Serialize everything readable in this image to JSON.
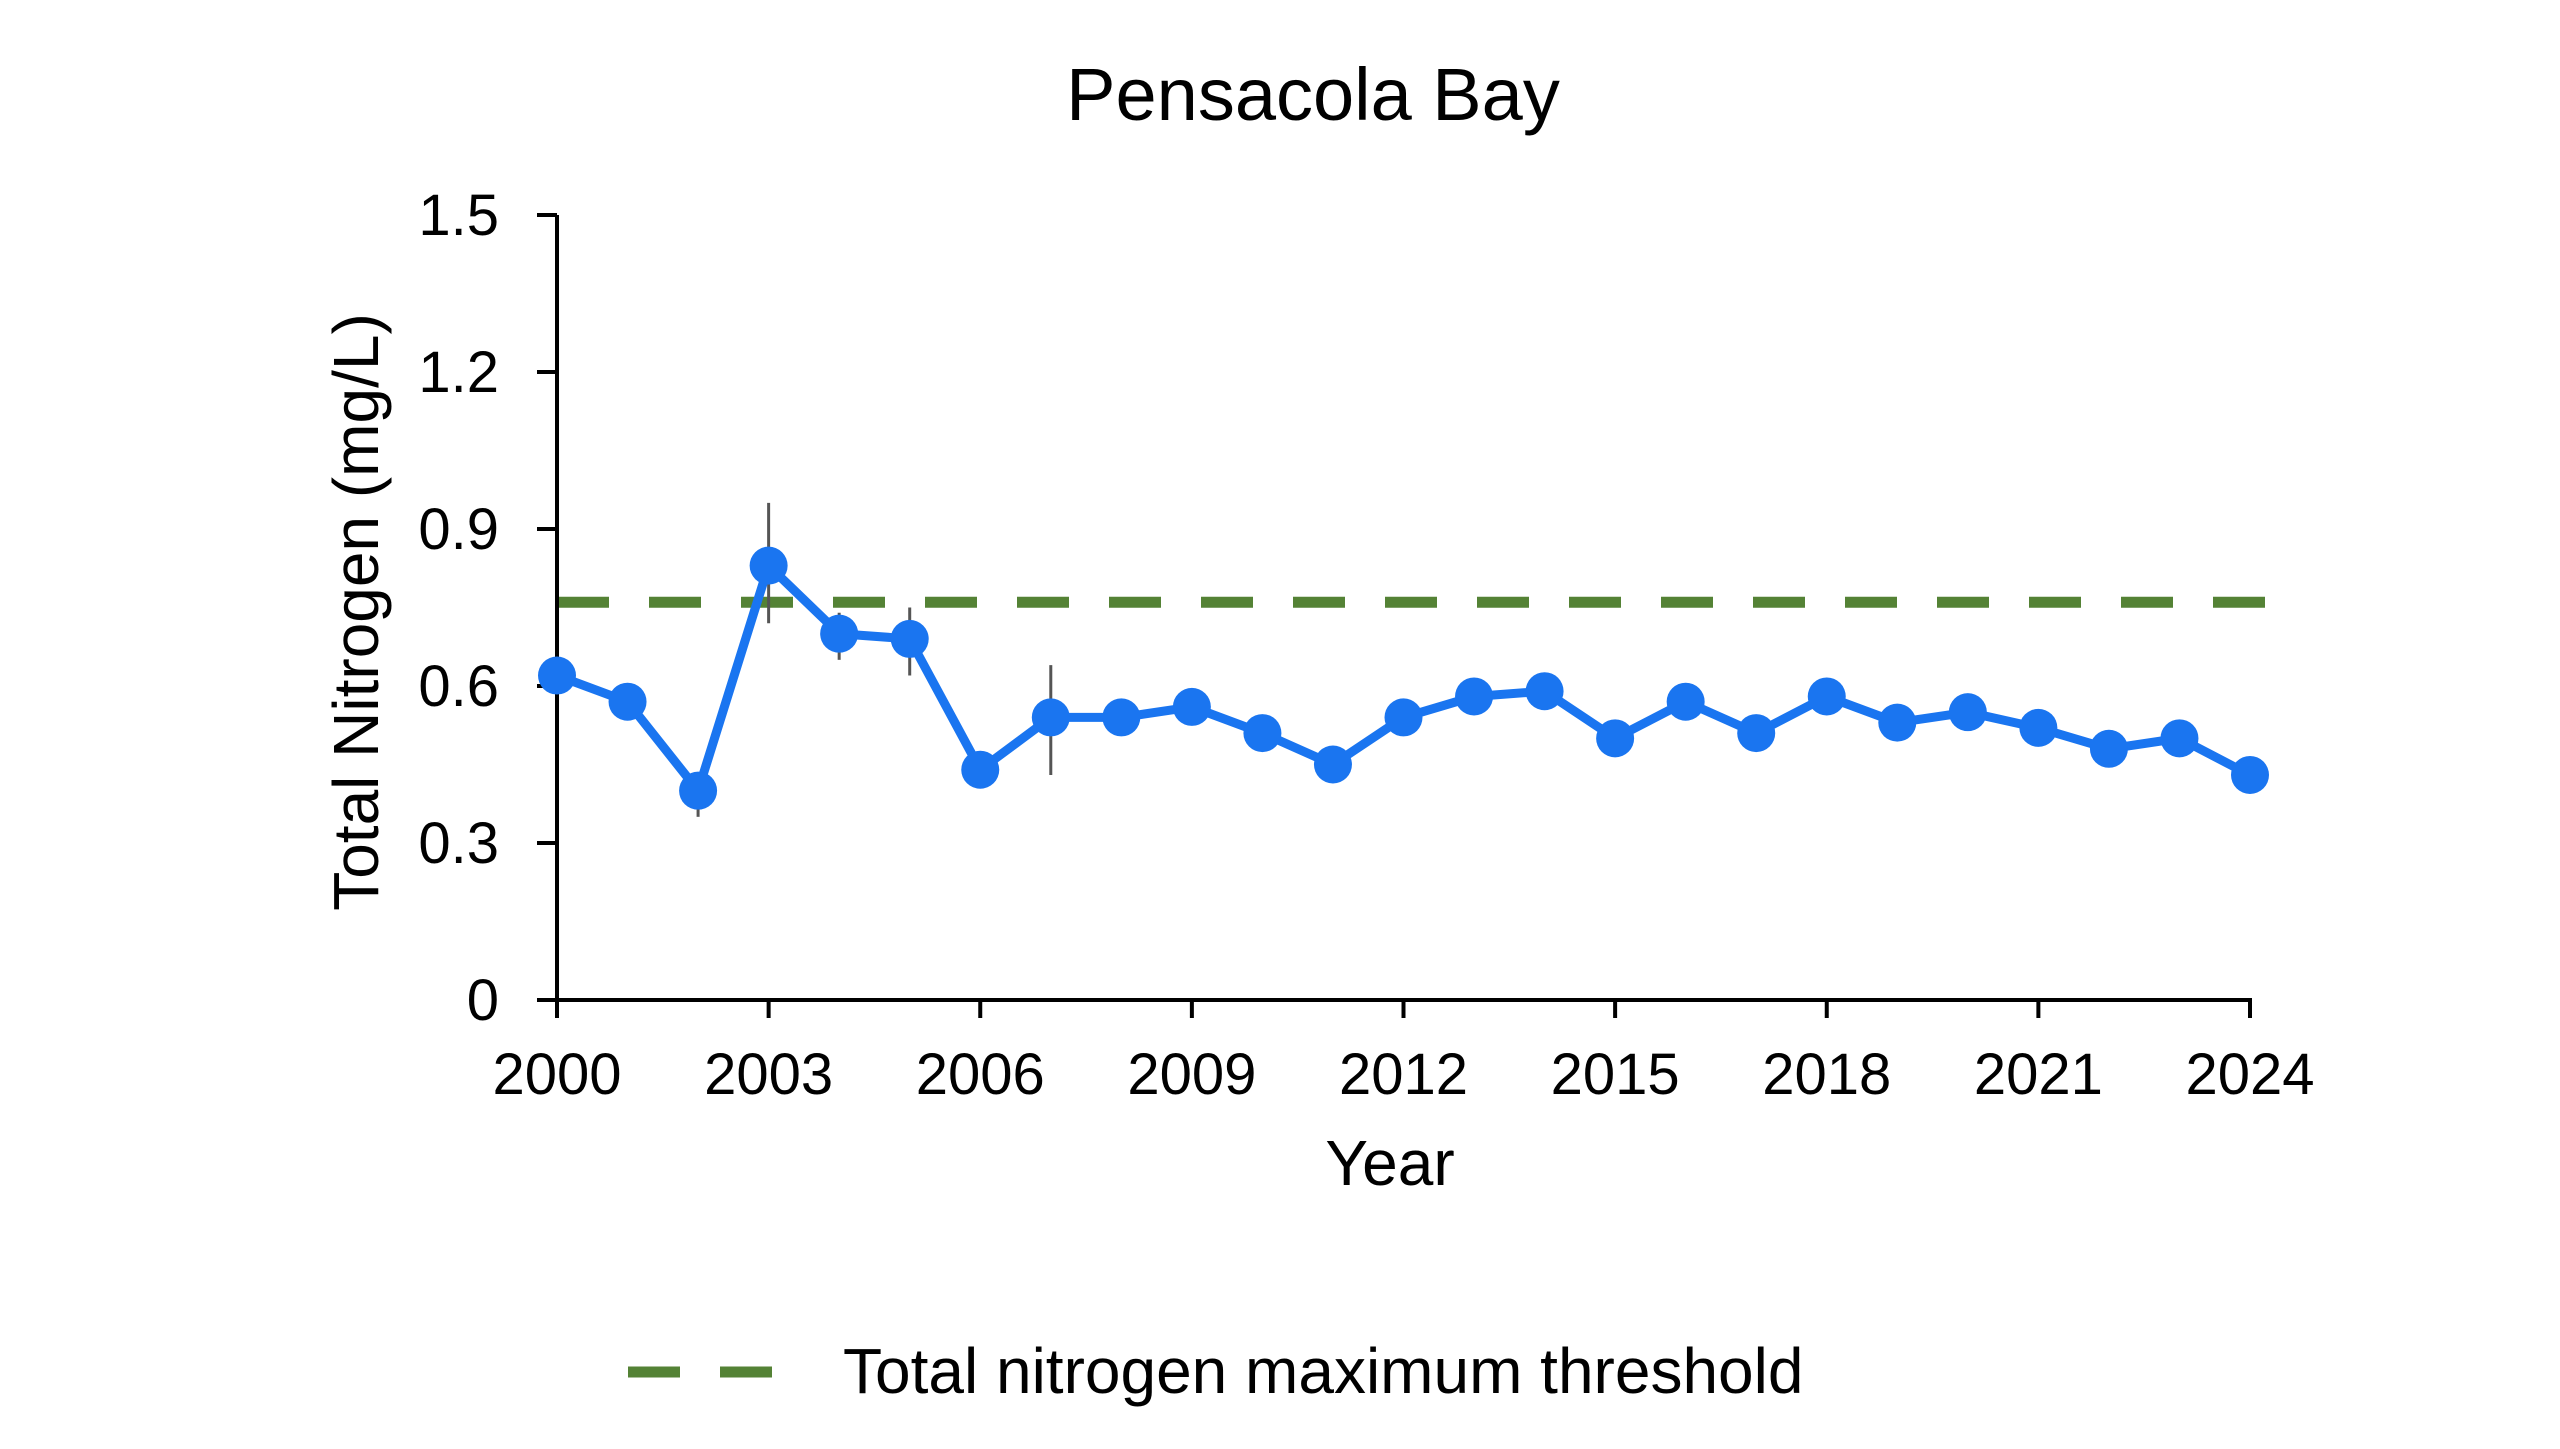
{
  "chart_data": {
    "type": "line",
    "title": "Pensacola Bay",
    "xlabel": "Year",
    "ylabel": "Total Nitrogen (mg/L)",
    "xlim": [
      2000,
      2024
    ],
    "ylim": [
      0,
      1.5
    ],
    "x_ticks": [
      "2000",
      "2003",
      "2006",
      "2009",
      "2012",
      "2015",
      "2018",
      "2021",
      "2024"
    ],
    "y_ticks": [
      "0",
      "0.3",
      "0.6",
      "0.9",
      "1.2",
      "1.5"
    ],
    "grid": false,
    "legend_position": "bottom",
    "series": [
      {
        "color": "#1a75f0",
        "points": [
          {
            "x": 2000,
            "y": 0.62
          },
          {
            "x": 2001,
            "y": 0.57
          },
          {
            "x": 2002,
            "y": 0.4,
            "err_low": 0.35,
            "err_high": 0.43
          },
          {
            "x": 2003,
            "y": 0.83,
            "err_low": 0.72,
            "err_high": 0.95
          },
          {
            "x": 2004,
            "y": 0.7,
            "err_low": 0.65,
            "err_high": 0.74
          },
          {
            "x": 2005,
            "y": 0.69,
            "err_low": 0.62,
            "err_high": 0.75
          },
          {
            "x": 2006,
            "y": 0.44
          },
          {
            "x": 2007,
            "y": 0.54,
            "err_low": 0.43,
            "err_high": 0.64
          },
          {
            "x": 2008,
            "y": 0.54
          },
          {
            "x": 2009,
            "y": 0.56
          },
          {
            "x": 2010,
            "y": 0.51
          },
          {
            "x": 2011,
            "y": 0.45
          },
          {
            "x": 2012,
            "y": 0.54
          },
          {
            "x": 2013,
            "y": 0.58
          },
          {
            "x": 2014,
            "y": 0.59
          },
          {
            "x": 2015,
            "y": 0.5
          },
          {
            "x": 2016,
            "y": 0.57
          },
          {
            "x": 2017,
            "y": 0.51
          },
          {
            "x": 2018,
            "y": 0.58
          },
          {
            "x": 2019,
            "y": 0.53
          },
          {
            "x": 2020,
            "y": 0.55
          },
          {
            "x": 2021,
            "y": 0.52
          },
          {
            "x": 2022,
            "y": 0.48
          },
          {
            "x": 2023,
            "y": 0.5
          },
          {
            "x": 2024,
            "y": 0.43
          }
        ]
      }
    ],
    "threshold": {
      "name": "Total nitrogen maximum threshold",
      "value": 0.76,
      "color": "#548235",
      "style": "dashed"
    }
  }
}
